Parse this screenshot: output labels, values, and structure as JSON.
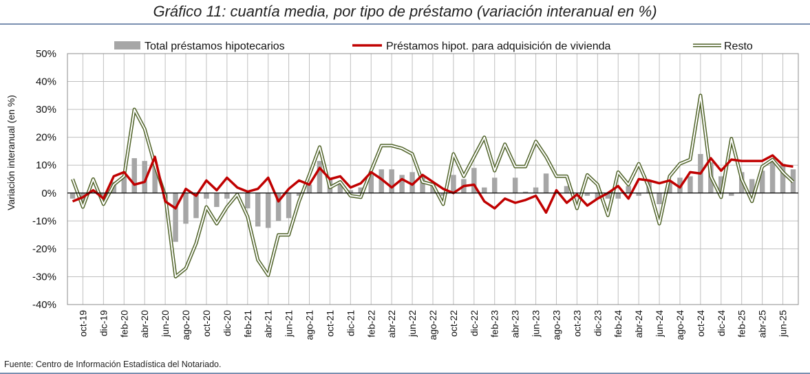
{
  "title": "Gráfico 11: cuantía media, por tipo de préstamo (variación interanual en %)",
  "source": "Fuente: Centro de Información Estadística del Notariado.",
  "chart_data": {
    "type": "bar",
    "title": "Gráfico 11: cuantía media, por tipo de préstamo (variación interanual en %)",
    "xlabel": "",
    "ylabel": "Variación interanual (en %)",
    "ylim": [
      -40,
      50
    ],
    "yticks": [
      -40,
      -30,
      -20,
      -10,
      0,
      10,
      20,
      30,
      40,
      50
    ],
    "ytick_labels": [
      "-40%",
      "-30%",
      "-20%",
      "-10%",
      "0%",
      "10%",
      "20%",
      "30%",
      "40%",
      "50%"
    ],
    "grid": true,
    "legend_position": "top",
    "categories": [
      "sep-19",
      "oct-19",
      "nov-19",
      "dic-19",
      "ene-20",
      "feb-20",
      "mar-20",
      "abr-20",
      "may-20",
      "jun-20",
      "jul-20",
      "ago-20",
      "sep-20",
      "oct-20",
      "nov-20",
      "dic-20",
      "ene-21",
      "feb-21",
      "mar-21",
      "abr-21",
      "may-21",
      "jun-21",
      "jul-21",
      "ago-21",
      "sep-21",
      "oct-21",
      "nov-21",
      "dic-21",
      "ene-22",
      "feb-22",
      "mar-22",
      "abr-22",
      "may-22",
      "jun-22",
      "jul-22",
      "ago-22",
      "sep-22",
      "oct-22",
      "nov-22",
      "dic-22",
      "ene-23",
      "feb-23",
      "mar-23",
      "abr-23",
      "may-23",
      "jun-23",
      "jul-23",
      "ago-23",
      "sep-23",
      "oct-23",
      "nov-23",
      "dic-23",
      "ene-24",
      "feb-24",
      "mar-24",
      "abr-24",
      "may-24",
      "jun-24",
      "jul-24",
      "ago-24",
      "sep-24",
      "oct-24",
      "nov-24",
      "dic-24",
      "ene-25",
      "feb-25",
      "mar-25",
      "abr-25",
      "may-25",
      "jun-25",
      "jul-25"
    ],
    "tick_labels": [
      "oct-19",
      "dic-19",
      "feb-20",
      "abr-20",
      "jun-20",
      "ago-20",
      "oct-20",
      "dic-20",
      "feb-21",
      "abr-21",
      "jun-21",
      "ago-21",
      "oct-21",
      "dic-21",
      "feb-22",
      "abr-22",
      "jun-22",
      "ago-22",
      "oct-22",
      "dic-22",
      "feb-23",
      "abr-23",
      "jun-23",
      "ago-23",
      "oct-23",
      "dic-23",
      "feb-24",
      "abr-24",
      "jun-24",
      "ago-24",
      "oct-24",
      "dic-24",
      "feb-25",
      "abr-25",
      "jun-25"
    ],
    "series": [
      {
        "name": "Total préstamos hipotecarios",
        "kind": "bar",
        "color": "#a6a6a6",
        "values": [
          -2,
          -4,
          1,
          -3,
          4,
          6,
          12.5,
          11.5,
          11,
          -2,
          -17.5,
          -11,
          -9,
          -2,
          -5,
          -2,
          0,
          -5.5,
          -12,
          -12.5,
          -10,
          -9,
          -1,
          3,
          11.5,
          5,
          4,
          1,
          2,
          6.5,
          8.5,
          8.5,
          6.5,
          7.5,
          6,
          3,
          -1,
          6.5,
          5,
          9,
          2,
          5.5,
          0,
          5.5,
          0.5,
          2,
          7,
          0,
          2.5,
          0,
          -1,
          -2,
          -2,
          -2,
          2.5,
          -1,
          4.5,
          -4,
          4.5,
          5.5,
          6,
          14,
          11,
          6,
          -1,
          7.5,
          5,
          8,
          12,
          10.5,
          8.5
        ]
      },
      {
        "name": "Préstamos hipot. para adquisición de vivienda",
        "kind": "line",
        "color": "#c00000",
        "values": [
          -3,
          -1.5,
          1,
          -2,
          6,
          7.5,
          3,
          4,
          13,
          -3,
          -5.5,
          1.5,
          -1,
          4.5,
          1,
          5.5,
          2,
          0.5,
          1.5,
          5.5,
          -3,
          1.5,
          4.5,
          3,
          9,
          5,
          6,
          2,
          3.5,
          7.5,
          5,
          2,
          5,
          3,
          6.5,
          4,
          1.5,
          0,
          2.5,
          3,
          -3,
          -5.5,
          -2,
          -3.5,
          -2.5,
          -1,
          -7,
          1,
          -3.5,
          -0.5,
          -4.5,
          -2,
          0,
          2.5,
          -2,
          5,
          4.5,
          3.5,
          4.5,
          2,
          7.5,
          7,
          12.5,
          8,
          12,
          11.5,
          11.5,
          11.5,
          13.5,
          10,
          9.5
        ]
      },
      {
        "name": "Resto",
        "kind": "line",
        "color": "#4f6228",
        "values": [
          5,
          -5,
          5,
          -4,
          3,
          6,
          30,
          23,
          10,
          -1,
          -30,
          -27,
          -18,
          -5,
          -11,
          -5,
          -0.5,
          -8.5,
          -24,
          -29.5,
          -15,
          -15,
          -3,
          6.5,
          16.5,
          2,
          4,
          -1,
          -1.5,
          8,
          17,
          17,
          16,
          14,
          4,
          3,
          -4,
          14,
          6,
          13,
          20,
          8,
          17.5,
          9.5,
          9.5,
          18.5,
          13,
          6,
          6,
          -5.5,
          6.5,
          3,
          -8,
          7.5,
          3,
          10.5,
          2,
          -11,
          6,
          10.5,
          12,
          35,
          6,
          -1.5,
          19.5,
          5,
          -3,
          9.5,
          12,
          7.5,
          4
        ]
      }
    ]
  }
}
